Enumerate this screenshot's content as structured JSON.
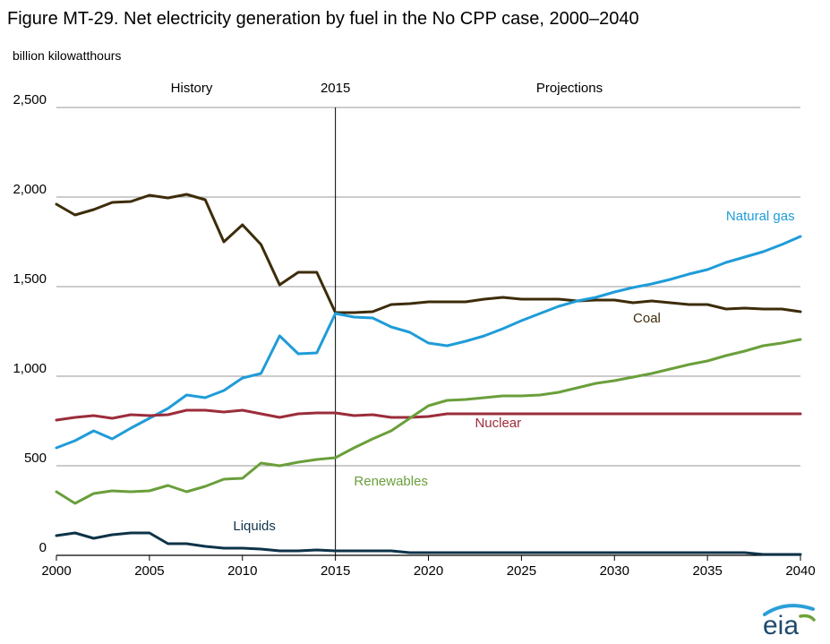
{
  "header": {
    "title": "Figure MT-29. Net electricity generation by fuel in the No CPP case, 2000–2040",
    "unit": "billion kilowatthours"
  },
  "logo": {
    "text": "eia",
    "colors": [
      "#2a9fd8",
      "#6da23a"
    ]
  },
  "chart_data": {
    "type": "line",
    "title": "Figure MT-29. Net electricity generation by fuel in the No CPP case, 2000–2040",
    "ylabel": "billion kilowatthours",
    "xlim": [
      2000,
      2040
    ],
    "ylim": [
      0,
      2500
    ],
    "xticks": [
      2000,
      2005,
      2010,
      2015,
      2020,
      2025,
      2030,
      2035,
      2040
    ],
    "xtick_labels": [
      "2000",
      "2005",
      "2010",
      "2015",
      "2020",
      "2025",
      "2030",
      "2035",
      "2040"
    ],
    "yticks": [
      0,
      500,
      1000,
      1500,
      2000,
      2500
    ],
    "ytick_labels": [
      "0",
      "500",
      "1,000",
      "1,500",
      "2,000",
      "2,500"
    ],
    "grid": "horizontal",
    "divider": {
      "x": 2015,
      "label": "2015"
    },
    "regions": {
      "left": "History",
      "right": "Projections"
    },
    "x": [
      2000,
      2001,
      2002,
      2003,
      2004,
      2005,
      2006,
      2007,
      2008,
      2009,
      2010,
      2011,
      2012,
      2013,
      2014,
      2015,
      2016,
      2017,
      2018,
      2019,
      2020,
      2021,
      2022,
      2023,
      2024,
      2025,
      2026,
      2027,
      2028,
      2029,
      2030,
      2031,
      2032,
      2033,
      2034,
      2035,
      2036,
      2037,
      2038,
      2039,
      2040
    ],
    "series": [
      {
        "name": "Coal",
        "color": "#3d2c0a",
        "label_pos": [
          2031,
          1300
        ],
        "values": [
          1960,
          1900,
          1930,
          1970,
          1975,
          2010,
          1995,
          2015,
          1985,
          1750,
          1845,
          1735,
          1510,
          1580,
          1580,
          1355,
          1355,
          1360,
          1400,
          1405,
          1415,
          1415,
          1415,
          1430,
          1440,
          1430,
          1430,
          1430,
          1420,
          1425,
          1425,
          1410,
          1420,
          1410,
          1400,
          1400,
          1375,
          1380,
          1375,
          1375,
          1360
        ]
      },
      {
        "name": "Natural gas",
        "color": "#1f9cd8",
        "label_pos": [
          2036,
          1870
        ],
        "values": [
          600,
          640,
          695,
          650,
          710,
          765,
          820,
          895,
          880,
          920,
          990,
          1015,
          1225,
          1125,
          1130,
          1350,
          1330,
          1325,
          1275,
          1245,
          1185,
          1170,
          1195,
          1225,
          1265,
          1310,
          1350,
          1390,
          1420,
          1440,
          1470,
          1495,
          1515,
          1540,
          1570,
          1595,
          1635,
          1665,
          1695,
          1735,
          1780
        ]
      },
      {
        "name": "Nuclear",
        "color": "#9b2d3b",
        "label_pos": [
          2022.5,
          715
        ],
        "values": [
          755,
          770,
          780,
          765,
          785,
          780,
          785,
          810,
          810,
          800,
          810,
          790,
          770,
          790,
          795,
          795,
          780,
          785,
          770,
          770,
          775,
          790,
          790,
          790,
          790,
          790,
          790,
          790,
          790,
          790,
          790,
          790,
          790,
          790,
          790,
          790,
          790,
          790,
          790,
          790,
          790
        ]
      },
      {
        "name": "Renewables",
        "color": "#6a9f3b",
        "label_pos": [
          2016,
          390
        ],
        "values": [
          355,
          290,
          345,
          360,
          355,
          360,
          390,
          355,
          385,
          425,
          430,
          515,
          500,
          520,
          535,
          545,
          600,
          650,
          695,
          765,
          835,
          865,
          870,
          880,
          890,
          890,
          895,
          910,
          935,
          960,
          975,
          995,
          1015,
          1040,
          1065,
          1085,
          1115,
          1140,
          1170,
          1185,
          1205
        ]
      },
      {
        "name": "Liquids",
        "color": "#0e3349",
        "label_pos": [
          2009.5,
          140
        ],
        "values": [
          110,
          125,
          95,
          115,
          125,
          125,
          65,
          65,
          50,
          40,
          40,
          35,
          25,
          25,
          30,
          25,
          25,
          25,
          25,
          15,
          15,
          15,
          15,
          15,
          15,
          15,
          15,
          15,
          15,
          15,
          15,
          15,
          15,
          15,
          15,
          15,
          15,
          15,
          5,
          5,
          5
        ]
      }
    ]
  }
}
